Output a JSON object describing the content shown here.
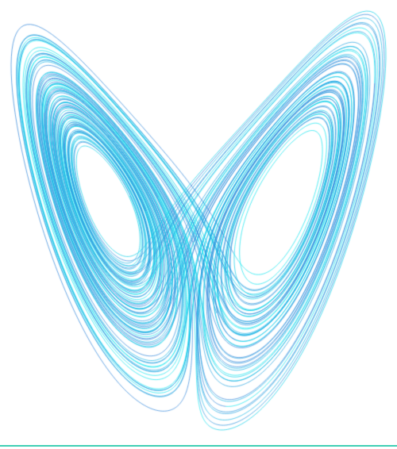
{
  "image": {
    "subject": "lorenz-attractor",
    "background_color": "#ffffff",
    "palette": [
      "#00e5ee",
      "#00cde8",
      "#0fb4e6",
      "#1a9fe0",
      "#1f8fdc",
      "#2580d8"
    ],
    "bottom_rule_color": "#3fcfb4"
  }
}
